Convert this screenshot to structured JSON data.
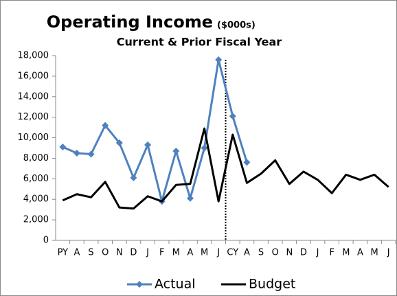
{
  "chart_data": {
    "type": "line",
    "title": "Operating Income",
    "title_unit": "($000s)",
    "subtitle": "Current & Prior Fiscal Year",
    "categories": [
      "PY",
      "A",
      "S",
      "O",
      "N",
      "D",
      "J",
      "F",
      "M",
      "A",
      "M",
      "J",
      "CY",
      "A",
      "S",
      "O",
      "N",
      "D",
      "J",
      "F",
      "M",
      "A",
      "M",
      "J"
    ],
    "series": [
      {
        "name": "Actual",
        "color": "#4f81bd",
        "marker": "diamond",
        "values": [
          9100,
          8500,
          8400,
          11200,
          9500,
          6100,
          9300,
          3800,
          8700,
          4100,
          9000,
          17600,
          12100,
          7600,
          null,
          null,
          null,
          null,
          null,
          null,
          null,
          null,
          null,
          null
        ]
      },
      {
        "name": "Budget",
        "color": "#000000",
        "marker": "none",
        "values": [
          3900,
          4500,
          4200,
          5700,
          3200,
          3100,
          4300,
          3800,
          5400,
          5500,
          10900,
          3800,
          10300,
          5600,
          6500,
          7800,
          5500,
          6700,
          5900,
          4600,
          6400,
          5900,
          6400,
          5200
        ]
      }
    ],
    "ylim": [
      0,
      18000
    ],
    "yticks": [
      {
        "value": 0,
        "label": "0"
      },
      {
        "value": 2000,
        "label": "2,000"
      },
      {
        "value": 4000,
        "label": "4,000"
      },
      {
        "value": 6000,
        "label": "6,000"
      },
      {
        "value": 8000,
        "label": "8,000"
      },
      {
        "value": 10000,
        "label": "10,000"
      },
      {
        "value": 12000,
        "label": "12,000"
      },
      {
        "value": 14000,
        "label": "14,000"
      },
      {
        "value": 16000,
        "label": "16,000"
      },
      {
        "value": 18000,
        "label": "18,000"
      }
    ],
    "grid": false,
    "legend": "bottom"
  }
}
